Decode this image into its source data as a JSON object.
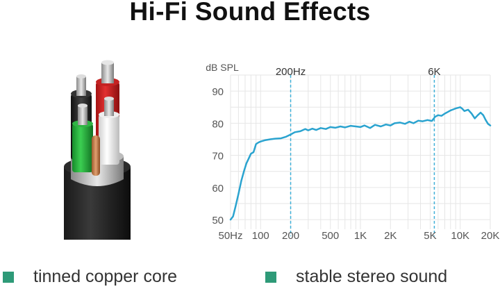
{
  "page": {
    "title": "Hi-Fi Sound Effects"
  },
  "features": [
    {
      "label": "tinned copper core"
    },
    {
      "label": "stable stereo sound"
    }
  ],
  "colors": {
    "curve": "#2aa3cf",
    "marker": "#3fb0d8",
    "legend_square": "#2e9a78",
    "grid": "#e6e6e6",
    "axis_text": "#555555"
  },
  "chart_data": {
    "type": "line",
    "ylabel": "dB SPL",
    "x_scale": "log",
    "xlim": [
      50,
      20000
    ],
    "ylim": [
      47,
      95
    ],
    "x_ticks": [
      50,
      100,
      200,
      500,
      1000,
      2000,
      5000,
      10000,
      20000
    ],
    "x_tick_labels": [
      "50Hz",
      "100",
      "200",
      "500",
      "1K",
      "2K",
      "5K",
      "10K",
      "20K"
    ],
    "y_ticks": [
      50,
      60,
      70,
      80,
      90
    ],
    "y_tick_labels": [
      "50",
      "60",
      "70",
      "80",
      "90"
    ],
    "grid": true,
    "markers": [
      {
        "x": 200,
        "label": "200Hz"
      },
      {
        "x": 5500,
        "label": "6K"
      }
    ],
    "series": [
      {
        "x": [
          50,
          53,
          56,
          60,
          64,
          68,
          72,
          76,
          80,
          85,
          90,
          95,
          100,
          110,
          125,
          140,
          160,
          180,
          200,
          220,
          250,
          280,
          300,
          330,
          360,
          400,
          450,
          500,
          560,
          630,
          700,
          800,
          900,
          1000,
          1100,
          1250,
          1400,
          1600,
          1800,
          2000,
          2200,
          2500,
          2800,
          3100,
          3400,
          3800,
          4200,
          4700,
          5200,
          5600,
          6000,
          6500,
          7000,
          7500,
          8000,
          8500,
          9000,
          9500,
          10000,
          10500,
          11000,
          12000,
          13000,
          14000,
          15000,
          16000,
          17000,
          18000,
          19000,
          20000
        ],
        "y": [
          50,
          51,
          54,
          58,
          62,
          65,
          67.5,
          69,
          70.5,
          71,
          73.5,
          74,
          74.3,
          74.7,
          75,
          75.2,
          75.3,
          75.8,
          76.5,
          77.2,
          77.5,
          78.2,
          77.8,
          78.3,
          77.9,
          78.5,
          78.2,
          78.8,
          78.6,
          79,
          78.7,
          79.2,
          79,
          78.8,
          79.3,
          78.5,
          79.5,
          79,
          79.6,
          79.3,
          80,
          80.2,
          79.8,
          80.5,
          80,
          80.8,
          80.6,
          81,
          80.7,
          82,
          82.5,
          82.3,
          83,
          83.5,
          84,
          84.3,
          84.6,
          84.8,
          85,
          84.5,
          83.8,
          84.2,
          83,
          81.5,
          82.5,
          83.3,
          82.5,
          81,
          79.8,
          79.3
        ]
      }
    ]
  }
}
